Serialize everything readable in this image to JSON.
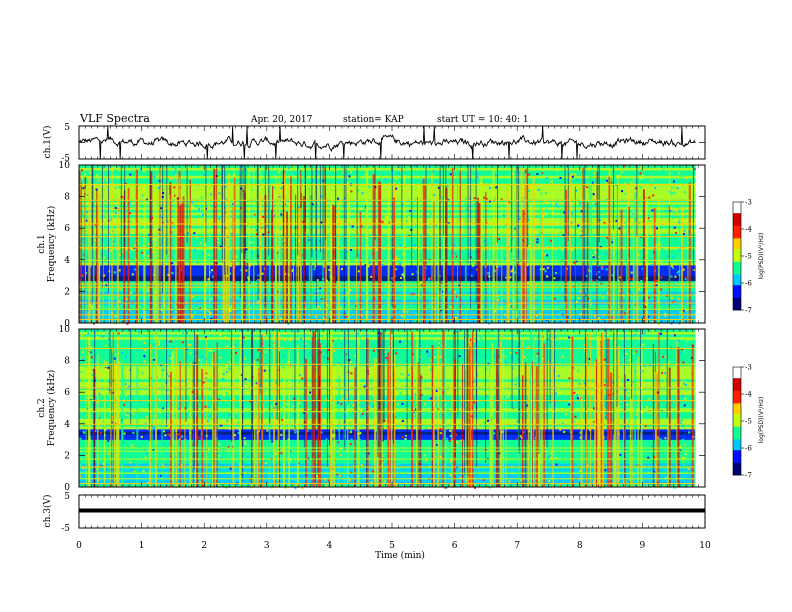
{
  "header": {
    "title": "VLF Spectra",
    "date": "Apr. 20, 2017",
    "station": "station= KAP",
    "start_time": "start  UT =   10: 40: 1"
  },
  "colormap": [
    "#00007a",
    "#0010ff",
    "#00c8ff",
    "#10ff90",
    "#c0ff10",
    "#ffd000",
    "#ff2000",
    "#d00000",
    "#ffffff"
  ],
  "chart_data": [
    {
      "id": "ch1-waveform",
      "type": "line",
      "ylabel": "ch.1(V)",
      "ylim": [
        -5,
        5
      ],
      "y_ticks": [
        "5",
        "-5"
      ],
      "xlim": [
        0,
        10
      ]
    },
    {
      "id": "ch1-spectrogram",
      "type": "heatmap",
      "ylabel_top": "ch.1",
      "ylabel": "Frequency  (kHz)",
      "ylim": [
        0,
        10
      ],
      "y_ticks": [
        "0",
        "2",
        "4",
        "6",
        "8",
        "10"
      ],
      "colorbar": {
        "label": "log(PSD)(V²/Hz)",
        "range": [
          -7,
          -3
        ],
        "ticks": [
          "-3",
          "-4",
          "-5",
          "-6",
          "-7"
        ]
      }
    },
    {
      "id": "ch2-spectrogram",
      "type": "heatmap",
      "ylabel_top": "ch.2",
      "ylabel": "Frequency  (kHz)",
      "ylim": [
        0,
        10
      ],
      "y_ticks": [
        "0",
        "2",
        "4",
        "6",
        "8",
        "10"
      ],
      "colorbar": {
        "label": "log(PSD)(V²/Hz)",
        "range": [
          -7,
          -3
        ],
        "ticks": [
          "-3",
          "-4",
          "-5",
          "-6",
          "-7"
        ]
      }
    },
    {
      "id": "ch3-waveform",
      "type": "line",
      "ylabel": "ch.3(V)",
      "ylim": [
        -5,
        5
      ],
      "y_ticks": [
        "5",
        "-5"
      ],
      "constant_value": 0.3
    }
  ],
  "x_axis": {
    "label": "Time  (min)",
    "ticks": [
      "0",
      "1",
      "2",
      "3",
      "4",
      "5",
      "6",
      "7",
      "8",
      "9",
      "10"
    ],
    "xlim": [
      0,
      10
    ]
  }
}
